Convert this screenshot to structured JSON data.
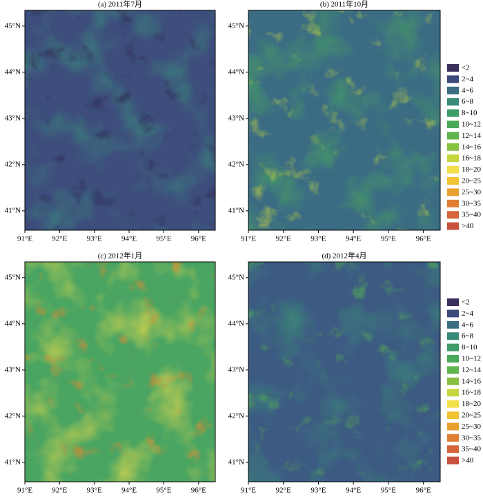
{
  "panels": [
    {
      "title": "(a) 2011年7月",
      "base": "#3d4d7c",
      "glow": "#3b8a7e",
      "glow2": "#2f2a52"
    },
    {
      "title": "(b) 2011年10月",
      "base": "#3b6c84",
      "glow": "#4aa95a",
      "glow2": "#c6d63e"
    },
    {
      "title": "(c) 2012年1月",
      "base": "#4aa562",
      "glow": "#e6d84a",
      "glow2": "#e08a34"
    },
    {
      "title": "(d) 2012年4月",
      "base": "#3c5a82",
      "glow": "#3b8a78",
      "glow2": "#55ad55"
    }
  ],
  "lon_range": [
    91,
    96.48
  ],
  "lat_range": [
    40.58,
    45.34
  ],
  "lon_ticks": [
    {
      "value": 91,
      "label": "91°E"
    },
    {
      "value": 92,
      "label": "92°E"
    },
    {
      "value": 93,
      "label": "93°E"
    },
    {
      "value": 94,
      "label": "94°E"
    },
    {
      "value": 95,
      "label": "95°E"
    },
    {
      "value": 96,
      "label": "96°E"
    }
  ],
  "lat_ticks": [
    {
      "value": 41,
      "label": "41°N"
    },
    {
      "value": 42,
      "label": "42°N"
    },
    {
      "value": 43,
      "label": "43°N"
    },
    {
      "value": 44,
      "label": "44°N"
    },
    {
      "value": 45,
      "label": "45°N"
    }
  ],
  "legend": {
    "items": [
      {
        "label": "<2",
        "color": "#3b2f5e"
      },
      {
        "label": "2~4",
        "color": "#3e4a7a"
      },
      {
        "label": "4~6",
        "color": "#3b6e82"
      },
      {
        "label": "6~8",
        "color": "#3a8a78"
      },
      {
        "label": "8~10",
        "color": "#3e9c68"
      },
      {
        "label": "10~12",
        "color": "#4aa95a"
      },
      {
        "label": "12~14",
        "color": "#5fb44e"
      },
      {
        "label": "14~16",
        "color": "#88c040"
      },
      {
        "label": "16~18",
        "color": "#c6d63e"
      },
      {
        "label": "18~20",
        "color": "#f2e04a"
      },
      {
        "label": "20~25",
        "color": "#f1c232"
      },
      {
        "label": "25~30",
        "color": "#e8a02e"
      },
      {
        "label": "30~35",
        "color": "#e07f34"
      },
      {
        "label": "35~40",
        "color": "#d6663a"
      },
      {
        "label": ">40",
        "color": "#c8503c"
      }
    ]
  }
}
